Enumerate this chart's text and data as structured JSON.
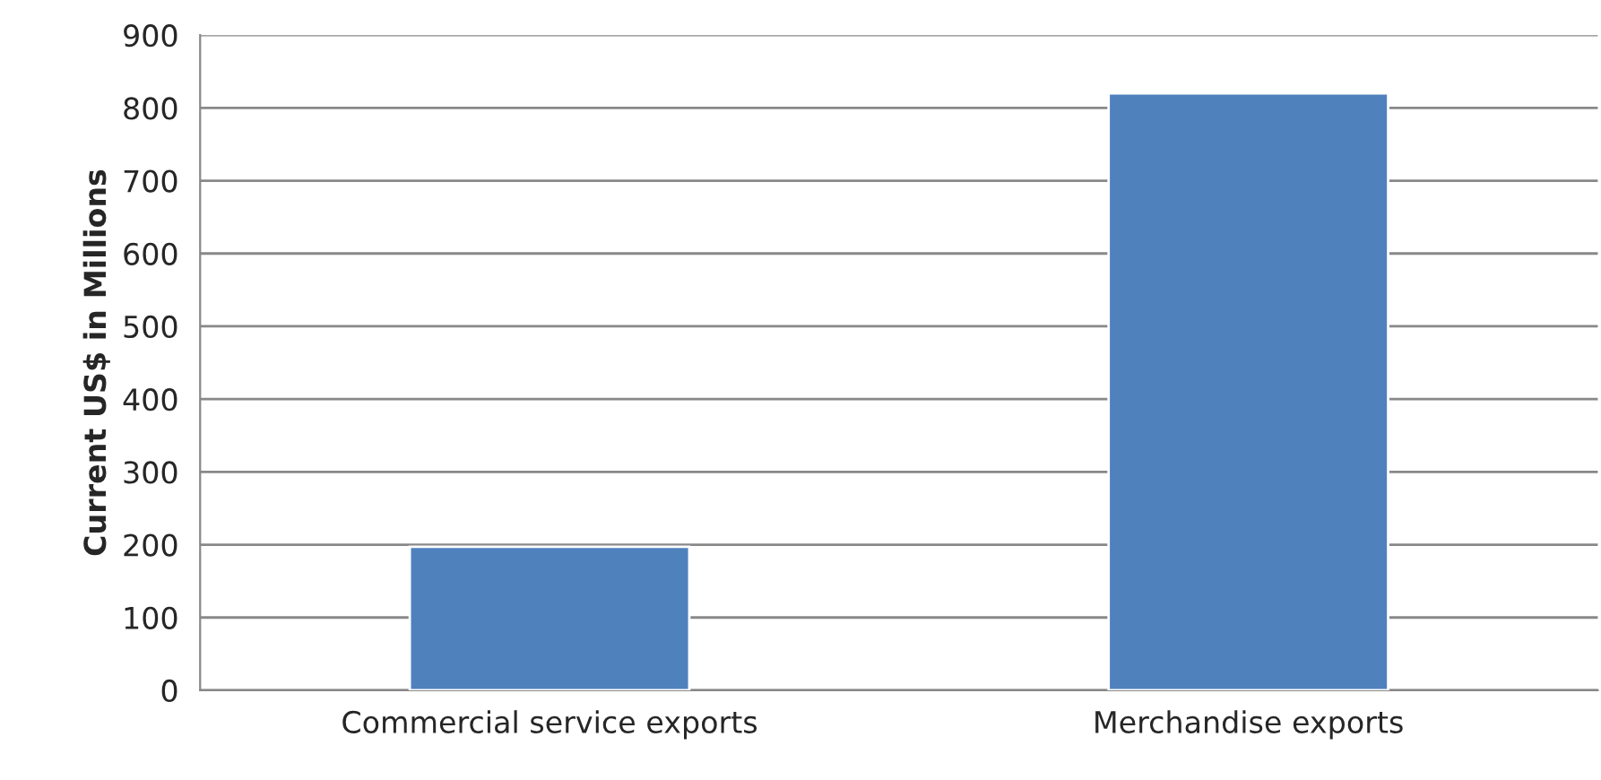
{
  "chart_data": {
    "type": "bar",
    "ylabel": "Current US$ in Millions",
    "categories": [
      "Commercial service exports",
      "Merchandise exports"
    ],
    "values": [
      197,
      820
    ],
    "color": "#4f81bd",
    "ylim": [
      0,
      900
    ],
    "yticks": [
      0,
      100,
      200,
      300,
      400,
      500,
      600,
      700,
      800,
      900
    ],
    "grid": "y"
  }
}
